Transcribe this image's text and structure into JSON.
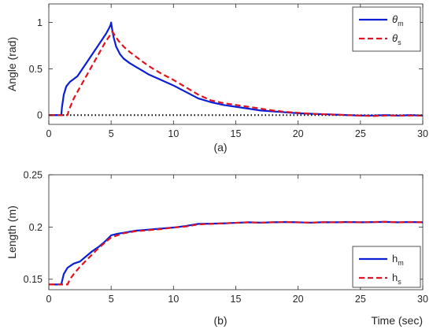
{
  "colors": {
    "model": "#0a1fd6",
    "sim": "#e0141e",
    "zero_line": "#000000",
    "axis": "#262626"
  },
  "chart_data": [
    {
      "type": "line",
      "caption": "(a)",
      "xlabel": "",
      "ylabel": "Angle (rad)",
      "xlim": [
        0,
        30
      ],
      "ylim": [
        -0.1,
        1.2
      ],
      "xticks": [
        "0",
        "5",
        "10",
        "15",
        "20",
        "25",
        "30"
      ],
      "yticks": [
        "0",
        "0.5",
        "1"
      ],
      "legend": {
        "placement": "top-right",
        "entries": [
          {
            "main": "θ",
            "sub": "m"
          },
          {
            "main": "θ",
            "sub": "s"
          }
        ]
      },
      "reference_line": {
        "y": 0,
        "style": "dotted"
      },
      "series": [
        {
          "name": "θm",
          "style": "solid",
          "x": [
            0,
            1.0,
            1.05,
            1.2,
            1.4,
            1.7,
            2.0,
            2.3,
            2.7,
            3.2,
            3.7,
            4.2,
            4.6,
            4.8,
            4.95,
            5.0,
            5.05,
            5.2,
            5.4,
            5.7,
            6.0,
            6.5,
            7.0,
            7.5,
            8.0,
            9.0,
            10.0,
            11.0,
            12.0,
            13.0,
            14.0,
            15.0,
            16.0,
            17.0,
            18.0,
            19.0,
            20.0,
            21.0,
            22.0,
            23.0,
            24.0,
            25.0,
            26.0,
            27.0,
            28.0,
            29.0,
            30.0
          ],
          "y": [
            0,
            0.0,
            0.08,
            0.22,
            0.31,
            0.36,
            0.39,
            0.42,
            0.5,
            0.6,
            0.7,
            0.8,
            0.88,
            0.93,
            0.97,
            1.0,
            0.95,
            0.84,
            0.74,
            0.66,
            0.61,
            0.56,
            0.52,
            0.48,
            0.44,
            0.38,
            0.32,
            0.25,
            0.18,
            0.14,
            0.11,
            0.09,
            0.07,
            0.05,
            0.04,
            0.03,
            0.02,
            0.015,
            0.01,
            0.005,
            0.0,
            -0.005,
            -0.005,
            0.0,
            -0.005,
            0.0,
            -0.005
          ]
        },
        {
          "name": "θs",
          "style": "dashed",
          "x": [
            0,
            1.5,
            1.6,
            2.0,
            2.5,
            3.0,
            3.5,
            4.0,
            4.5,
            5.0,
            5.1,
            5.3,
            5.6,
            6.0,
            6.5,
            7.0,
            7.5,
            8.0,
            9.0,
            10.0,
            11.0,
            12.0,
            13.0,
            14.0,
            15.0,
            16.0,
            17.0,
            18.0,
            19.0,
            20.0,
            21.0,
            22.0,
            23.0,
            24.0,
            25.0,
            26.0,
            27.0,
            28.0,
            29.0,
            30.0
          ],
          "y": [
            0,
            0.0,
            0.05,
            0.18,
            0.3,
            0.42,
            0.54,
            0.66,
            0.78,
            0.88,
            0.9,
            0.86,
            0.8,
            0.74,
            0.68,
            0.63,
            0.58,
            0.53,
            0.45,
            0.38,
            0.3,
            0.22,
            0.16,
            0.13,
            0.11,
            0.09,
            0.07,
            0.05,
            0.035,
            0.025,
            0.015,
            0.01,
            0.005,
            0.0,
            -0.005,
            -0.01,
            -0.005,
            -0.005,
            -0.005,
            -0.005
          ]
        }
      ]
    },
    {
      "type": "line",
      "caption": "(b)",
      "xlabel": "Time (sec)",
      "ylabel": "Length (m)",
      "xlim": [
        0,
        30
      ],
      "ylim": [
        0.14,
        0.25
      ],
      "xticks": [
        "0",
        "5",
        "10",
        "15",
        "20",
        "25",
        "30"
      ],
      "yticks": [
        "0.15",
        "0.2",
        "0.25"
      ],
      "legend": {
        "placement": "bottom-right",
        "entries": [
          {
            "main": "h",
            "sub": "m"
          },
          {
            "main": "h",
            "sub": "s"
          }
        ]
      },
      "series": [
        {
          "name": "hm",
          "style": "solid",
          "x": [
            0,
            1.0,
            1.2,
            1.5,
            2.0,
            2.5,
            3.0,
            3.5,
            4.0,
            4.5,
            5.0,
            5.5,
            6.0,
            7.0,
            8.0,
            9.0,
            10.0,
            11.0,
            12.0,
            13.0,
            14.0,
            15.0,
            16.0,
            17.0,
            18.0,
            19.0,
            20.0,
            21.0,
            22.0,
            23.0,
            24.0,
            25.0,
            26.0,
            27.0,
            28.0,
            29.0,
            30.0
          ],
          "y": [
            0.145,
            0.145,
            0.155,
            0.161,
            0.165,
            0.167,
            0.172,
            0.177,
            0.181,
            0.186,
            0.192,
            0.1935,
            0.1945,
            0.1965,
            0.1975,
            0.1985,
            0.1995,
            0.201,
            0.203,
            0.2032,
            0.2035,
            0.204,
            0.2045,
            0.2042,
            0.2045,
            0.2048,
            0.2045,
            0.2042,
            0.2046,
            0.2045,
            0.2048,
            0.2045,
            0.2047,
            0.2049,
            0.2045,
            0.2048,
            0.2045
          ]
        },
        {
          "name": "hs",
          "style": "dashed",
          "x": [
            0,
            1.5,
            1.7,
            2.0,
            2.5,
            3.0,
            3.5,
            4.0,
            4.5,
            5.0,
            5.5,
            6.0,
            7.0,
            8.0,
            9.0,
            10.0,
            11.0,
            12.0,
            13.0,
            14.0,
            15.0,
            16.0,
            17.0,
            18.0,
            19.0,
            20.0,
            21.0,
            22.0,
            23.0,
            24.0,
            25.0,
            26.0,
            27.0,
            28.0,
            29.0,
            30.0
          ],
          "y": [
            0.145,
            0.145,
            0.15,
            0.155,
            0.162,
            0.168,
            0.174,
            0.18,
            0.185,
            0.19,
            0.192,
            0.194,
            0.196,
            0.197,
            0.198,
            0.1995,
            0.2005,
            0.2025,
            0.203,
            0.2035,
            0.204,
            0.2045,
            0.2042,
            0.2046,
            0.2048,
            0.2044,
            0.2042,
            0.2046,
            0.2045,
            0.2047,
            0.2045,
            0.2047,
            0.205,
            0.2045,
            0.2047,
            0.2045
          ]
        }
      ]
    }
  ]
}
